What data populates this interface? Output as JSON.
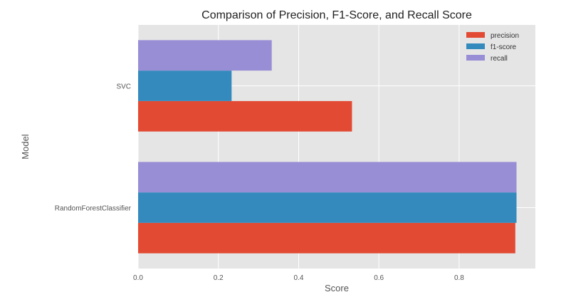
{
  "chart_data": {
    "type": "bar",
    "orientation": "horizontal",
    "title": "Comparison of Precision, F1-Score, and Recall Score",
    "xlabel": "Score",
    "ylabel": "Model",
    "categories": [
      "RandomForestClassifier",
      "SVC"
    ],
    "series": [
      {
        "name": "precision",
        "color": "#E24A33",
        "values": [
          0.94,
          0.533
        ]
      },
      {
        "name": "f1-score",
        "color": "#348ABD",
        "values": [
          0.943,
          0.233
        ]
      },
      {
        "name": "recall",
        "color": "#988ED5",
        "values": [
          0.943,
          0.333
        ]
      }
    ],
    "xlim": [
      0,
      0.99
    ],
    "xticks": [
      0.0,
      0.2,
      0.4,
      0.6,
      0.8
    ],
    "xtick_labels": [
      "0.0",
      "0.2",
      "0.4",
      "0.6",
      "0.8"
    ],
    "grid": true,
    "legend_position": "top-right",
    "background_color": "#E5E5E5",
    "grid_color": "#FFFFFF"
  }
}
